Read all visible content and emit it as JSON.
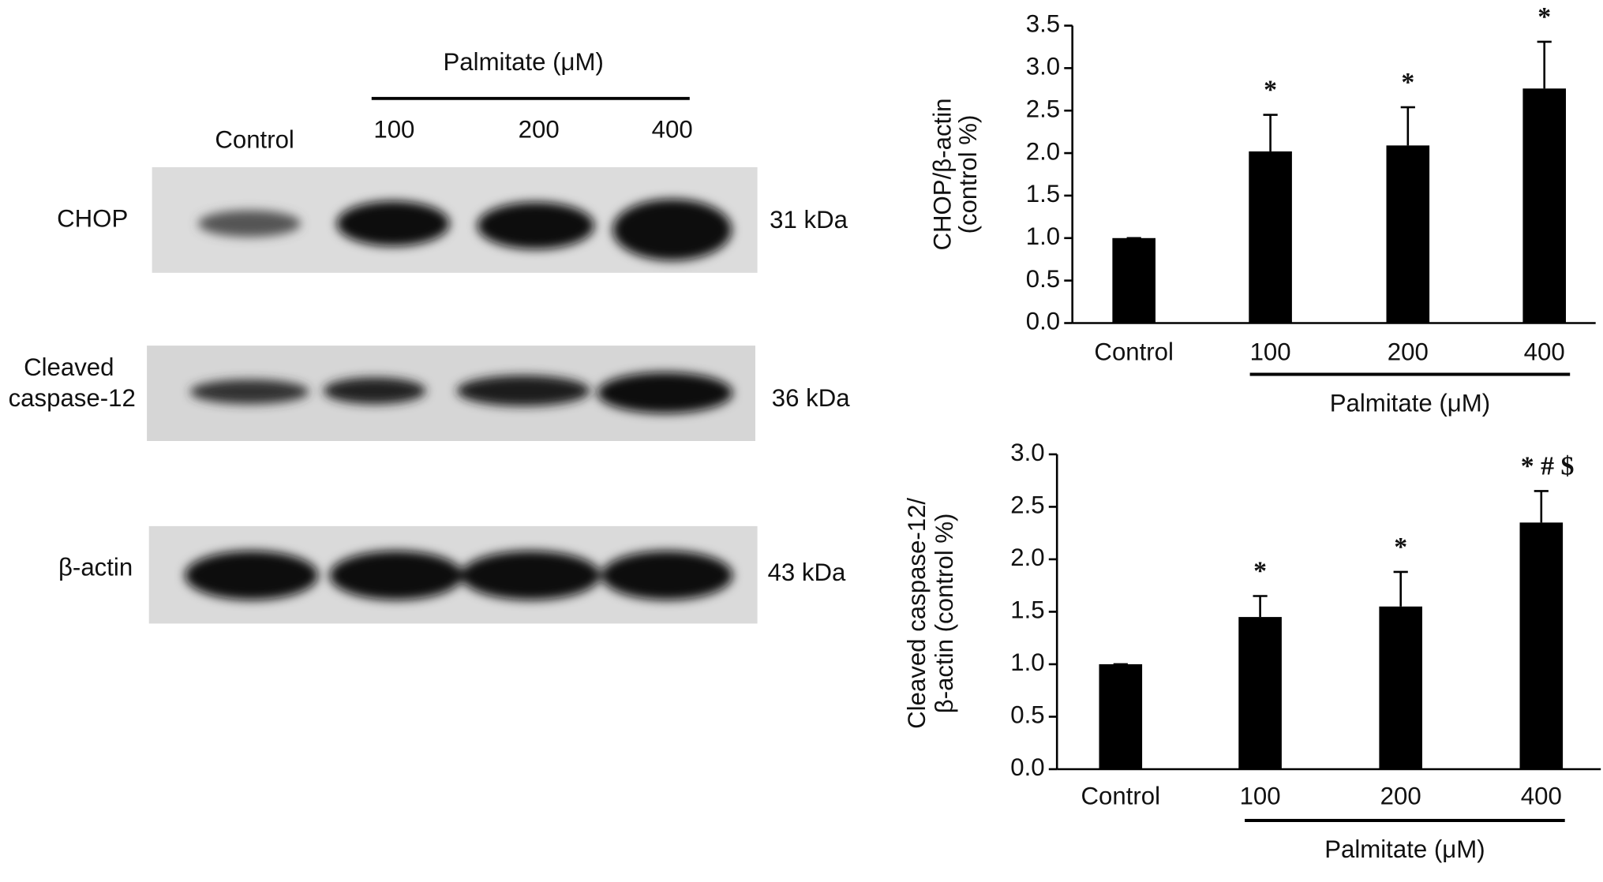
{
  "blot": {
    "title": "Palmitate (μM)",
    "lanes": [
      "Control",
      "100",
      "200",
      "400"
    ],
    "rows": [
      {
        "label": [
          "CHOP"
        ],
        "size": "31 kDa"
      },
      {
        "label": [
          "Cleaved",
          "caspase-12"
        ],
        "size": "36 kDa"
      },
      {
        "label": [
          "β-actin"
        ],
        "size": "43 kDa"
      }
    ]
  },
  "chart_data": [
    {
      "type": "bar",
      "ylabel": [
        "CHOP/β-actin",
        "(control %)"
      ],
      "categories": [
        "Control",
        "100",
        "200",
        "400"
      ],
      "group_label": "Palmitate (μM)",
      "values": [
        1.0,
        2.02,
        2.09,
        2.76
      ],
      "errors": [
        0,
        0.43,
        0.45,
        0.55
      ],
      "annotations": [
        null,
        "*",
        "*",
        "*"
      ],
      "color": "#000000",
      "ylim": [
        0,
        3.5
      ],
      "yticks": [
        {
          "value": 0,
          "label": "0.0"
        },
        0.5,
        {
          "value": 1,
          "label": "1.0"
        },
        1.5,
        {
          "value": 2,
          "label": "2.0"
        },
        2.5,
        {
          "value": 3,
          "label": "3.0"
        },
        3.5
      ]
    },
    {
      "type": "bar",
      "ylabel": [
        "Cleaved caspase-12/",
        "β-actin (control %)"
      ],
      "categories": [
        "Control",
        "100",
        "200",
        "400"
      ],
      "group_label": "Palmitate (μM)",
      "values": [
        1.0,
        1.45,
        1.55,
        2.35
      ],
      "errors": [
        0,
        0.2,
        0.33,
        0.3
      ],
      "annotations": [
        null,
        "*",
        "*",
        "* # $"
      ],
      "color": "#000000",
      "ylim": [
        0,
        3
      ],
      "yticks": [
        {
          "value": 0,
          "label": "0.0"
        },
        0.5,
        {
          "value": 1,
          "label": "1.0"
        },
        1.5,
        {
          "value": 2,
          "label": "2.0"
        },
        2.5,
        {
          "value": 3,
          "label": "3.0"
        }
      ]
    }
  ]
}
